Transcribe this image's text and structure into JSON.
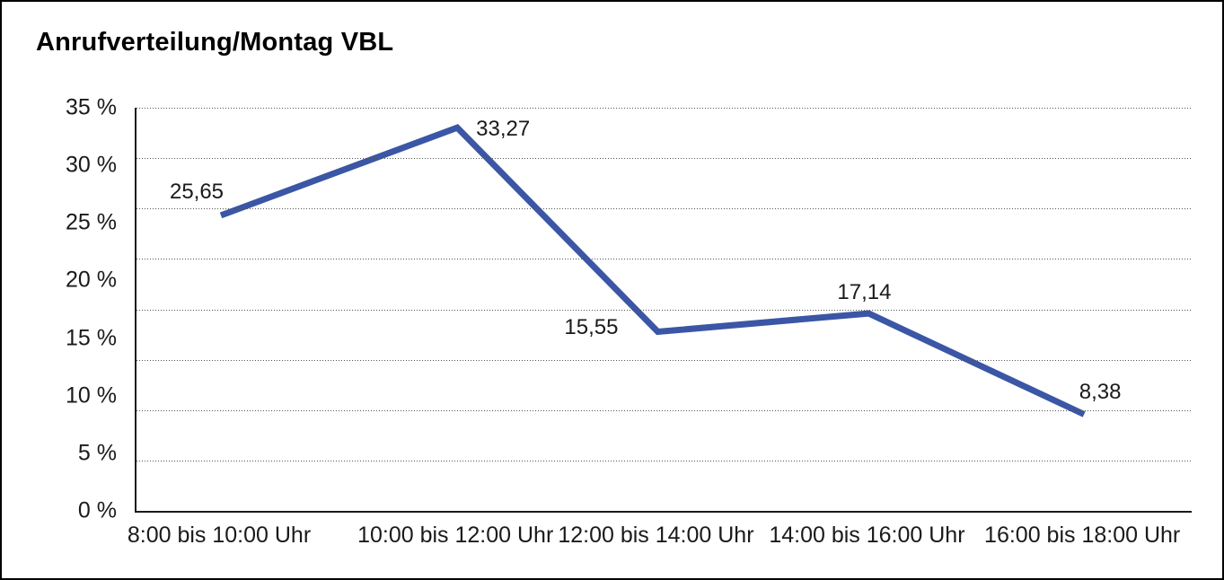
{
  "window": {
    "background": "#ffffff",
    "frame_border_color": "#000000"
  },
  "chart_data": {
    "type": "line",
    "title": "Anrufverteilung/Montag VBL",
    "categories": [
      "8:00 bis 10:00 Uhr",
      "10:00 bis 12:00 Uhr",
      "12:00 bis 14:00 Uhr",
      "14:00 bis 16:00 Uhr",
      "16:00 bis 18:00 Uhr"
    ],
    "values": [
      25.65,
      33.27,
      15.55,
      17.14,
      8.38
    ],
    "point_labels": [
      "25,65",
      "33,27",
      "15,55",
      "17,14",
      "8,38"
    ],
    "y_ticks": [
      "35 %",
      "30 %",
      "25 %",
      "20 %",
      "15 %",
      "10 %",
      "5 %",
      "0 %"
    ],
    "ylim": [
      0,
      35
    ],
    "xlabel": "",
    "ylabel": "",
    "grid": "horizontal-dotted-8-intervals",
    "legend": "none",
    "line_color": "#3B56A5",
    "axis_color": "#1a1a1a",
    "text_color": "#1a1a1a"
  }
}
